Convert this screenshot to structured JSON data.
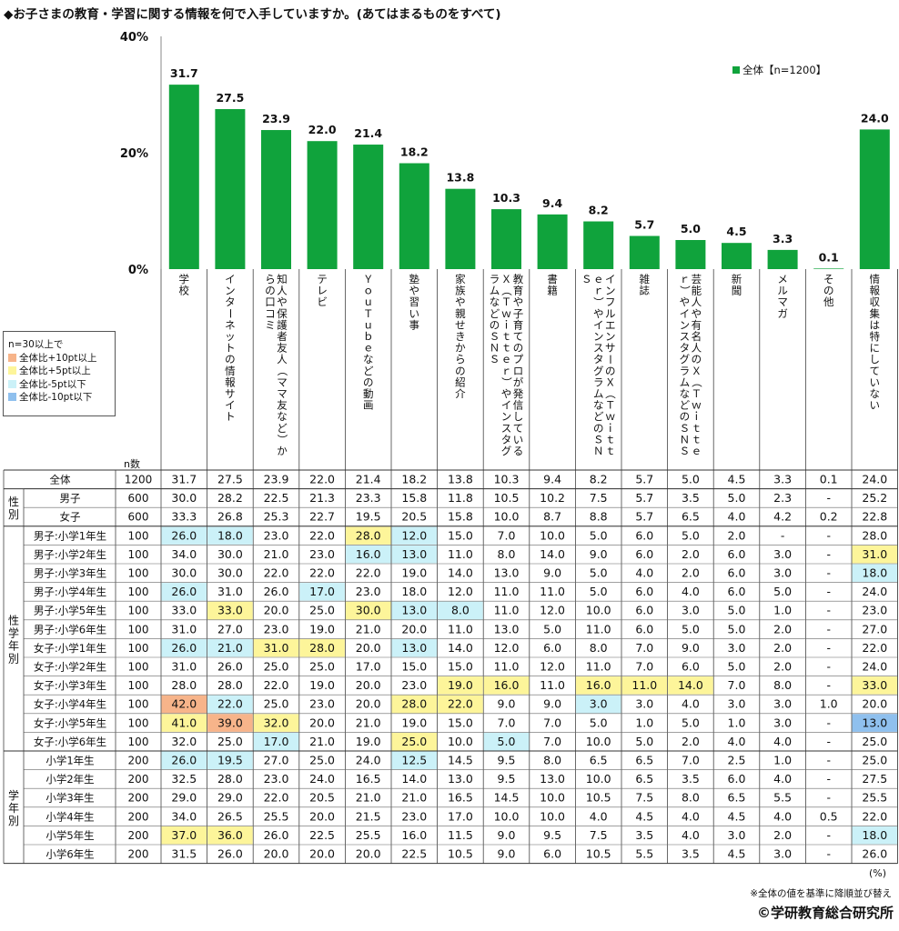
{
  "title": "◆お子さまの教育・学習に関する情報を何で入手していますか。(あてはまるものをすべて)",
  "chart_data": {
    "type": "bar",
    "title": "お子さまの教育・学習に関する情報を何で入手していますか。(あてはまるものをすべて)",
    "ylim": [
      0,
      40
    ],
    "yticks": [
      "0%",
      "20%",
      "40%"
    ],
    "legend": "全体【n=1200】",
    "legend_position": "top-right",
    "bar_color": "#10a33c",
    "categories": [
      "学校",
      "インターネットの情報サイト",
      "知人や保護者友人（ママ友など）からの口コミ",
      "テレビ",
      "ＹｏｕＴｕｂｅなどの動画",
      "塾や習い事",
      "家族や親せきからの紹介",
      "教育や子育てのプロが発信しているＸ（Ｔｗｉｔｔｅｒ）やインスタグラムなどのＳＮＳ",
      "書籍",
      "インフルエンサーのＸ（Ｔｗｉｔｔｅｒ）やインスタグラムなどのＳＮＳ",
      "雑誌",
      "芸能人や有名人のＸ（Ｔｗｉｔｔｅｒ）やインスタグラムなどのＳＮＳ",
      "新聞",
      "メルマガ",
      "その他",
      "情報収集は特にしていない"
    ],
    "values": [
      31.7,
      27.5,
      23.9,
      22.0,
      21.4,
      18.2,
      13.8,
      10.3,
      9.4,
      8.2,
      5.7,
      5.0,
      4.5,
      3.3,
      0.1,
      24.0
    ],
    "value_labels": [
      "31.7",
      "27.5",
      "23.9",
      "22.0",
      "21.4",
      "18.2",
      "13.8",
      "10.3",
      "9.4",
      "8.2",
      "5.7",
      "5.0",
      "4.5",
      "3.3",
      "0.1",
      "24.0"
    ]
  },
  "legend_box": {
    "heading": "n=30以上で",
    "items": [
      {
        "label": "全体比+10pt以上",
        "color": "#f7b48a"
      },
      {
        "label": "全体比+5pt以上",
        "color": "#fdf59a"
      },
      {
        "label": "全体比-5pt以下",
        "color": "#cbf1f8"
      },
      {
        "label": "全体比-10pt以下",
        "color": "#8fc0ee"
      }
    ]
  },
  "n_header": "n数",
  "table": {
    "groups": [
      {
        "label": "",
        "rows": [
          {
            "label": "全体",
            "n": "1200",
            "cells": [
              "31.7",
              "27.5",
              "23.9",
              "22.0",
              "21.4",
              "18.2",
              "13.8",
              "10.3",
              "9.4",
              "8.2",
              "5.7",
              "5.0",
              "4.5",
              "3.3",
              "0.1",
              "24.0"
            ],
            "hl": "................"
          }
        ]
      },
      {
        "label": "性別",
        "rows": [
          {
            "label": "男子",
            "n": "600",
            "cells": [
              "30.0",
              "28.2",
              "22.5",
              "21.3",
              "23.3",
              "15.8",
              "11.8",
              "10.5",
              "10.2",
              "7.5",
              "5.7",
              "3.5",
              "5.0",
              "2.3",
              "-",
              "25.2"
            ],
            "hl": "................"
          },
          {
            "label": "女子",
            "n": "600",
            "cells": [
              "33.3",
              "26.8",
              "25.3",
              "22.7",
              "19.5",
              "20.5",
              "15.8",
              "10.0",
              "8.7",
              "8.8",
              "5.7",
              "6.5",
              "4.0",
              "4.2",
              "0.2",
              "22.8"
            ],
            "hl": "................"
          }
        ]
      },
      {
        "label": "性学年別",
        "rows": [
          {
            "label": "男子:小学1年生",
            "n": "100",
            "cells": [
              "26.0",
              "18.0",
              "23.0",
              "22.0",
              "28.0",
              "12.0",
              "15.0",
              "7.0",
              "10.0",
              "5.0",
              "6.0",
              "5.0",
              "2.0",
              "-",
              "-",
              "28.0"
            ],
            "hl": "cc..yc.........."
          },
          {
            "label": "男子:小学2年生",
            "n": "100",
            "cells": [
              "34.0",
              "30.0",
              "21.0",
              "23.0",
              "16.0",
              "13.0",
              "11.0",
              "8.0",
              "14.0",
              "9.0",
              "6.0",
              "2.0",
              "6.0",
              "3.0",
              "-",
              "31.0"
            ],
            "hl": "....cc.........y"
          },
          {
            "label": "男子:小学3年生",
            "n": "100",
            "cells": [
              "30.0",
              "30.0",
              "22.0",
              "22.0",
              "22.0",
              "19.0",
              "14.0",
              "13.0",
              "9.0",
              "5.0",
              "4.0",
              "2.0",
              "6.0",
              "3.0",
              "-",
              "18.0"
            ],
            "hl": "...............c"
          },
          {
            "label": "男子:小学4年生",
            "n": "100",
            "cells": [
              "26.0",
              "31.0",
              "26.0",
              "17.0",
              "23.0",
              "18.0",
              "12.0",
              "11.0",
              "11.0",
              "5.0",
              "6.0",
              "4.0",
              "6.0",
              "5.0",
              "-",
              "24.0"
            ],
            "hl": "c..c............"
          },
          {
            "label": "男子:小学5年生",
            "n": "100",
            "cells": [
              "33.0",
              "33.0",
              "20.0",
              "25.0",
              "30.0",
              "13.0",
              "8.0",
              "11.0",
              "12.0",
              "10.0",
              "6.0",
              "3.0",
              "5.0",
              "1.0",
              "-",
              "23.0"
            ],
            "hl": ".y..ycc........."
          },
          {
            "label": "男子:小学6年生",
            "n": "100",
            "cells": [
              "31.0",
              "27.0",
              "23.0",
              "19.0",
              "21.0",
              "20.0",
              "11.0",
              "13.0",
              "5.0",
              "11.0",
              "6.0",
              "5.0",
              "5.0",
              "2.0",
              "-",
              "27.0"
            ],
            "hl": "................"
          },
          {
            "label": "女子:小学1年生",
            "n": "100",
            "cells": [
              "26.0",
              "21.0",
              "31.0",
              "28.0",
              "20.0",
              "13.0",
              "14.0",
              "12.0",
              "6.0",
              "8.0",
              "7.0",
              "9.0",
              "3.0",
              "2.0",
              "-",
              "22.0"
            ],
            "hl": "ccyy.c.........."
          },
          {
            "label": "女子:小学2年生",
            "n": "100",
            "cells": [
              "31.0",
              "26.0",
              "25.0",
              "25.0",
              "17.0",
              "15.0",
              "15.0",
              "11.0",
              "12.0",
              "11.0",
              "7.0",
              "6.0",
              "5.0",
              "2.0",
              "-",
              "24.0"
            ],
            "hl": "................"
          },
          {
            "label": "女子:小学3年生",
            "n": "100",
            "cells": [
              "28.0",
              "28.0",
              "22.0",
              "19.0",
              "20.0",
              "23.0",
              "19.0",
              "16.0",
              "11.0",
              "16.0",
              "11.0",
              "14.0",
              "7.0",
              "8.0",
              "-",
              "33.0"
            ],
            "hl": "......yy.yyy...y"
          },
          {
            "label": "女子:小学4年生",
            "n": "100",
            "cells": [
              "42.0",
              "22.0",
              "25.0",
              "23.0",
              "20.0",
              "28.0",
              "22.0",
              "9.0",
              "9.0",
              "3.0",
              "3.0",
              "4.0",
              "3.0",
              "3.0",
              "1.0",
              "20.0"
            ],
            "hl": "oc...yy..c......"
          },
          {
            "label": "女子:小学5年生",
            "n": "100",
            "cells": [
              "41.0",
              "39.0",
              "32.0",
              "20.0",
              "21.0",
              "19.0",
              "15.0",
              "7.0",
              "7.0",
              "5.0",
              "1.0",
              "5.0",
              "1.0",
              "3.0",
              "-",
              "13.0"
            ],
            "hl": "yoy............b"
          },
          {
            "label": "女子:小学6年生",
            "n": "100",
            "cells": [
              "32.0",
              "25.0",
              "17.0",
              "21.0",
              "19.0",
              "25.0",
              "10.0",
              "5.0",
              "7.0",
              "10.0",
              "5.0",
              "2.0",
              "4.0",
              "4.0",
              "-",
              "25.0"
            ],
            "hl": "..c..y.c........"
          }
        ]
      },
      {
        "label": "学年別",
        "rows": [
          {
            "label": "小学1年生",
            "n": "200",
            "cells": [
              "26.0",
              "19.5",
              "27.0",
              "25.0",
              "24.0",
              "12.5",
              "14.5",
              "9.5",
              "8.0",
              "6.5",
              "6.5",
              "7.0",
              "2.5",
              "1.0",
              "-",
              "25.0"
            ],
            "hl": "cc...c.........."
          },
          {
            "label": "小学2年生",
            "n": "200",
            "cells": [
              "32.5",
              "28.0",
              "23.0",
              "24.0",
              "16.5",
              "14.0",
              "13.0",
              "9.5",
              "13.0",
              "10.0",
              "6.5",
              "3.5",
              "6.0",
              "4.0",
              "-",
              "27.5"
            ],
            "hl": "................"
          },
          {
            "label": "小学3年生",
            "n": "200",
            "cells": [
              "29.0",
              "29.0",
              "22.0",
              "20.5",
              "21.0",
              "21.0",
              "16.5",
              "14.5",
              "10.0",
              "10.5",
              "7.5",
              "8.0",
              "6.5",
              "5.5",
              "-",
              "25.5"
            ],
            "hl": "................"
          },
          {
            "label": "小学4年生",
            "n": "200",
            "cells": [
              "34.0",
              "26.5",
              "25.5",
              "20.0",
              "21.5",
              "23.0",
              "17.0",
              "10.0",
              "10.0",
              "4.0",
              "4.5",
              "4.0",
              "4.5",
              "4.0",
              "0.5",
              "22.0"
            ],
            "hl": "................"
          },
          {
            "label": "小学5年生",
            "n": "200",
            "cells": [
              "37.0",
              "36.0",
              "26.0",
              "22.5",
              "25.5",
              "16.0",
              "11.5",
              "9.0",
              "9.5",
              "7.5",
              "3.5",
              "4.0",
              "3.0",
              "2.0",
              "-",
              "18.0"
            ],
            "hl": "yy.............c"
          },
          {
            "label": "小学6年生",
            "n": "200",
            "cells": [
              "31.5",
              "26.0",
              "20.0",
              "20.0",
              "20.0",
              "22.5",
              "10.5",
              "9.0",
              "6.0",
              "10.5",
              "5.5",
              "3.5",
              "4.5",
              "3.0",
              "-",
              "26.0"
            ],
            "hl": "................"
          }
        ]
      }
    ]
  },
  "highlight_colors": {
    "o": "#f7b48a",
    "y": "#fdf59a",
    "c": "#cbf1f8",
    "b": "#8fc0ee"
  },
  "unit_note": "(%)",
  "sort_note": "※全体の値を基準に降順並び替え",
  "copyright": "©学研教育総合研究所"
}
